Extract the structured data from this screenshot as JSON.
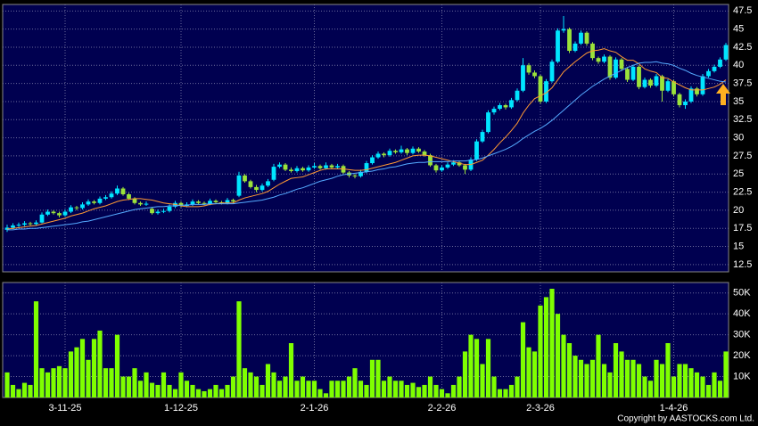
{
  "chart_data": {
    "type": "candlestick",
    "categories": [
      null,
      null,
      null,
      null,
      null,
      null,
      null,
      null,
      null,
      null,
      "3-11-25",
      null,
      null,
      null,
      null,
      null,
      null,
      null,
      null,
      null,
      null,
      null,
      null,
      null,
      null,
      null,
      null,
      null,
      null,
      null,
      "1-12-25",
      null,
      null,
      null,
      null,
      null,
      null,
      null,
      null,
      null,
      null,
      null,
      null,
      null,
      null,
      null,
      null,
      null,
      null,
      null,
      null,
      null,
      null,
      "2-1-26",
      null,
      null,
      null,
      null,
      null,
      null,
      null,
      null,
      null,
      null,
      null,
      null,
      null,
      null,
      null,
      null,
      null,
      null,
      null,
      null,
      null,
      "2-2-26",
      null,
      null,
      null,
      null,
      null,
      null,
      null,
      null,
      null,
      null,
      null,
      null,
      null,
      null,
      null,
      null,
      "2-3-26",
      null,
      null,
      null,
      null,
      null,
      null,
      null,
      null,
      null,
      null,
      null,
      null,
      null,
      null,
      null,
      null,
      null,
      null,
      null,
      null,
      null,
      null,
      "1-4-26",
      null,
      null,
      null,
      null,
      null,
      null,
      null,
      null,
      null
    ],
    "ohlc": [
      [
        17.3,
        18.0,
        17.0,
        17.6
      ],
      [
        17.6,
        18.2,
        17.4,
        17.9
      ],
      [
        17.9,
        18.3,
        17.7,
        18.0
      ],
      [
        18.0,
        18.5,
        17.8,
        18.2
      ],
      [
        18.2,
        18.4,
        17.9,
        18.1
      ],
      [
        18.1,
        18.6,
        17.9,
        18.3
      ],
      [
        18.3,
        19.7,
        18.2,
        19.4
      ],
      [
        19.4,
        20.1,
        19.2,
        19.8
      ],
      [
        19.8,
        20.0,
        19.4,
        19.6
      ],
      [
        19.6,
        19.8,
        19.0,
        19.3
      ],
      [
        19.3,
        20.1,
        19.1,
        19.8
      ],
      [
        19.8,
        20.7,
        19.6,
        20.4
      ],
      [
        20.4,
        20.6,
        20.0,
        20.3
      ],
      [
        20.3,
        21.1,
        20.1,
        20.8
      ],
      [
        20.8,
        21.5,
        20.6,
        21.2
      ],
      [
        21.2,
        21.4,
        20.8,
        21.0
      ],
      [
        21.0,
        21.9,
        20.8,
        21.6
      ],
      [
        21.6,
        22.1,
        21.4,
        21.8
      ],
      [
        21.8,
        22.6,
        21.6,
        22.3
      ],
      [
        22.3,
        23.4,
        22.1,
        23.0
      ],
      [
        23.0,
        23.2,
        22.0,
        22.2
      ],
      [
        22.2,
        22.4,
        21.4,
        21.6
      ],
      [
        21.6,
        21.8,
        20.8,
        21.0
      ],
      [
        21.0,
        21.2,
        20.6,
        20.8
      ],
      [
        20.8,
        21.2,
        20.6,
        20.9
      ],
      [
        20.2,
        20.4,
        19.4,
        19.6
      ],
      [
        19.6,
        20.1,
        19.4,
        19.8
      ],
      [
        19.8,
        20.2,
        19.6,
        19.9
      ],
      [
        19.9,
        20.8,
        19.7,
        20.5
      ],
      [
        20.5,
        21.3,
        20.3,
        21.0
      ],
      [
        21.0,
        21.2,
        20.4,
        20.6
      ],
      [
        20.6,
        21.1,
        20.4,
        20.8
      ],
      [
        20.8,
        21.5,
        20.6,
        21.2
      ],
      [
        21.2,
        21.4,
        20.8,
        21.0
      ],
      [
        21.0,
        21.2,
        20.7,
        20.9
      ],
      [
        20.9,
        21.6,
        20.7,
        21.3
      ],
      [
        21.3,
        21.5,
        20.9,
        21.1
      ],
      [
        21.1,
        21.3,
        20.8,
        21.0
      ],
      [
        21.0,
        21.7,
        20.8,
        21.4
      ],
      [
        21.4,
        21.6,
        21.0,
        21.2
      ],
      [
        22.0,
        25.3,
        21.8,
        24.8
      ],
      [
        24.8,
        25.0,
        23.8,
        24.0
      ],
      [
        24.0,
        24.2,
        23.0,
        23.2
      ],
      [
        23.2,
        23.5,
        22.5,
        22.8
      ],
      [
        22.8,
        23.7,
        22.6,
        23.4
      ],
      [
        23.4,
        24.3,
        23.2,
        24.0
      ],
      [
        24.2,
        26.4,
        24.0,
        26.0
      ],
      [
        26.0,
        26.6,
        25.8,
        26.3
      ],
      [
        26.3,
        26.5,
        25.4,
        25.6
      ],
      [
        25.6,
        25.9,
        25.2,
        25.4
      ],
      [
        25.4,
        26.1,
        25.2,
        25.8
      ],
      [
        25.8,
        26.0,
        25.3,
        25.5
      ],
      [
        25.5,
        26.2,
        25.3,
        25.9
      ],
      [
        25.9,
        26.5,
        25.7,
        26.1
      ],
      [
        26.1,
        26.3,
        25.6,
        25.8
      ],
      [
        25.8,
        26.6,
        25.6,
        26.2
      ],
      [
        26.2,
        26.4,
        25.7,
        25.9
      ],
      [
        25.9,
        26.4,
        25.7,
        26.1
      ],
      [
        26.1,
        26.3,
        25.0,
        25.2
      ],
      [
        25.2,
        25.4,
        24.5,
        24.8
      ],
      [
        24.8,
        25.0,
        24.4,
        24.7
      ],
      [
        24.7,
        25.6,
        24.5,
        25.3
      ],
      [
        25.3,
        26.8,
        25.1,
        26.5
      ],
      [
        26.5,
        27.6,
        26.3,
        27.3
      ],
      [
        27.3,
        28.1,
        27.1,
        27.8
      ],
      [
        27.8,
        28.0,
        27.3,
        27.6
      ],
      [
        27.6,
        28.5,
        27.4,
        28.2
      ],
      [
        28.2,
        28.4,
        27.8,
        28.0
      ],
      [
        28.0,
        28.9,
        27.8,
        28.4
      ],
      [
        28.4,
        28.6,
        27.6,
        27.9
      ],
      [
        27.9,
        28.8,
        27.7,
        28.5
      ],
      [
        28.5,
        28.7,
        27.9,
        28.1
      ],
      [
        28.1,
        28.3,
        27.4,
        27.6
      ],
      [
        27.6,
        27.8,
        26.0,
        26.2
      ],
      [
        26.2,
        26.4,
        25.2,
        25.5
      ],
      [
        25.5,
        26.2,
        25.3,
        25.9
      ],
      [
        25.9,
        26.6,
        25.7,
        26.3
      ],
      [
        26.3,
        26.9,
        26.1,
        26.6
      ],
      [
        26.6,
        26.8,
        26.0,
        26.2
      ],
      [
        26.2,
        26.4,
        25.0,
        25.6
      ],
      [
        25.6,
        27.3,
        25.4,
        27.0
      ],
      [
        27.0,
        29.8,
        26.8,
        29.5
      ],
      [
        29.5,
        31.1,
        29.3,
        30.8
      ],
      [
        30.8,
        33.8,
        30.6,
        33.5
      ],
      [
        33.5,
        34.3,
        33.2,
        34.0
      ],
      [
        34.0,
        34.8,
        33.8,
        34.5
      ],
      [
        34.5,
        34.7,
        33.9,
        34.2
      ],
      [
        34.2,
        35.5,
        34.0,
        35.2
      ],
      [
        35.2,
        36.8,
        35.0,
        36.5
      ],
      [
        36.5,
        41.0,
        36.3,
        40.0
      ],
      [
        40.0,
        40.3,
        38.7,
        39.0
      ],
      [
        39.0,
        39.3,
        38.2,
        38.5
      ],
      [
        38.5,
        38.7,
        34.7,
        35.0
      ],
      [
        35.0,
        38.1,
        34.8,
        37.8
      ],
      [
        37.8,
        40.8,
        37.6,
        40.5
      ],
      [
        40.5,
        45.1,
        40.3,
        44.8
      ],
      [
        44.8,
        46.8,
        44.5,
        45.0
      ],
      [
        45.0,
        45.2,
        41.7,
        42.0
      ],
      [
        42.0,
        43.3,
        41.8,
        43.0
      ],
      [
        43.0,
        44.8,
        42.8,
        44.5
      ],
      [
        44.5,
        44.7,
        42.7,
        43.0
      ],
      [
        43.0,
        43.2,
        40.7,
        41.0
      ],
      [
        41.0,
        41.2,
        40.2,
        40.5
      ],
      [
        40.5,
        41.5,
        40.3,
        41.2
      ],
      [
        41.2,
        41.4,
        38.0,
        38.3
      ],
      [
        38.3,
        41.1,
        38.1,
        40.8
      ],
      [
        40.8,
        41.0,
        39.2,
        39.5
      ],
      [
        39.5,
        39.7,
        37.7,
        38.0
      ],
      [
        38.0,
        40.1,
        37.8,
        39.8
      ],
      [
        39.8,
        40.0,
        36.7,
        37.0
      ],
      [
        37.0,
        38.3,
        36.8,
        38.0
      ],
      [
        38.0,
        38.2,
        36.9,
        37.2
      ],
      [
        37.2,
        38.8,
        37.0,
        38.5
      ],
      [
        38.5,
        38.7,
        35.0,
        36.5
      ],
      [
        36.5,
        38.1,
        36.3,
        37.8
      ],
      [
        37.8,
        38.0,
        35.7,
        36.0
      ],
      [
        36.0,
        36.2,
        34.2,
        34.5
      ],
      [
        34.5,
        35.3,
        34.0,
        35.0
      ],
      [
        35.0,
        37.1,
        34.8,
        36.8
      ],
      [
        36.8,
        37.0,
        35.7,
        36.0
      ],
      [
        36.0,
        38.8,
        35.8,
        38.5
      ],
      [
        38.5,
        39.5,
        38.3,
        39.2
      ],
      [
        39.2,
        40.1,
        39.0,
        39.8
      ],
      [
        39.8,
        41.1,
        39.6,
        40.8
      ],
      [
        40.8,
        43.1,
        40.6,
        42.8
      ]
    ],
    "up_color": "#00e5ff",
    "down_color": "#9be33a",
    "series": [
      {
        "color": "#ff9933",
        "values": [
          17.4,
          17.5,
          17.6,
          17.7,
          17.8,
          17.9,
          18.1,
          18.3,
          18.5,
          18.7,
          18.9,
          19.2,
          19.4,
          19.6,
          19.9,
          20.2,
          20.4,
          20.6,
          20.9,
          21.2,
          21.4,
          21.5,
          21.6,
          21.6,
          21.5,
          21.4,
          21.2,
          21.0,
          20.9,
          20.8,
          20.6,
          20.5,
          20.5,
          20.5,
          20.6,
          20.8,
          20.9,
          21.0,
          21.0,
          21.0,
          21.4,
          21.7,
          21.9,
          22.1,
          22.3,
          22.6,
          23.1,
          23.6,
          24.0,
          24.4,
          24.5,
          24.6,
          24.9,
          25.2,
          25.5,
          25.7,
          25.7,
          25.7,
          25.7,
          25.6,
          25.5,
          25.5,
          25.6,
          25.8,
          26.0,
          26.2,
          26.4,
          26.6,
          26.9,
          27.2,
          27.5,
          27.6,
          27.6,
          27.5,
          27.3,
          27.1,
          26.9,
          26.7,
          26.5,
          26.3,
          26.3,
          26.6,
          26.9,
          27.6,
          28.4,
          29.3,
          30.1,
          31.0,
          32.0,
          33.4,
          34.5,
          35.4,
          35.8,
          36.2,
          36.9,
          38.0,
          39.1,
          39.8,
          40.5,
          41.1,
          41.7,
          42.0,
          42.1,
          42.3,
          42.0,
          41.8,
          41.2,
          40.7,
          40.7,
          40.2,
          39.5,
          39.2,
          39.0,
          38.3,
          38.2,
          37.7,
          37.3,
          36.9,
          36.6,
          36.6,
          36.6,
          36.8,
          37.0,
          37.4,
          38.0
        ]
      },
      {
        "color": "#55aaff",
        "values": [
          17.3,
          17.3,
          17.4,
          17.4,
          17.5,
          17.5,
          17.6,
          17.7,
          17.8,
          17.9,
          18.0,
          18.1,
          18.2,
          18.4,
          18.5,
          18.7,
          18.9,
          19.1,
          19.3,
          19.5,
          19.7,
          19.9,
          20.1,
          20.2,
          20.3,
          20.4,
          20.5,
          20.5,
          20.6,
          20.6,
          20.7,
          20.7,
          20.8,
          20.8,
          20.8,
          20.9,
          20.9,
          20.9,
          20.9,
          20.9,
          21.0,
          21.1,
          21.2,
          21.3,
          21.4,
          21.6,
          21.8,
          22.1,
          22.3,
          22.6,
          22.9,
          23.1,
          23.4,
          23.7,
          24.0,
          24.2,
          24.4,
          24.7,
          24.9,
          25.0,
          25.1,
          25.2,
          25.3,
          25.4,
          25.6,
          25.7,
          25.9,
          26.0,
          26.2,
          26.4,
          26.5,
          26.6,
          26.6,
          26.7,
          26.7,
          26.7,
          26.7,
          26.8,
          26.8,
          26.8,
          26.9,
          27.0,
          27.2,
          27.5,
          27.8,
          28.1,
          28.4,
          28.8,
          29.3,
          29.9,
          30.4,
          30.9,
          31.3,
          31.8,
          32.4,
          33.1,
          33.8,
          34.5,
          35.2,
          35.9,
          36.5,
          37.1,
          37.6,
          38.1,
          38.5,
          38.9,
          39.3,
          39.7,
          40.0,
          40.3,
          40.4,
          40.4,
          40.5,
          40.3,
          40.2,
          40.0,
          39.6,
          39.3,
          38.9,
          38.6,
          38.4,
          38.2,
          38.0,
          37.8,
          37.7
        ]
      }
    ],
    "ylim": [
      11.5,
      48.4
    ],
    "yticks": [
      12.5,
      15,
      17.5,
      20,
      22.5,
      25,
      27.5,
      30,
      32.5,
      35,
      37.5,
      40,
      42.5,
      45,
      47.5
    ],
    "volume": {
      "color": "#7fff00",
      "values": [
        12000,
        6000,
        4000,
        7000,
        6000,
        46000,
        14000,
        12000,
        14000,
        15000,
        14000,
        22000,
        24000,
        28000,
        18000,
        28000,
        32000,
        14000,
        14000,
        30000,
        10000,
        10000,
        14000,
        8000,
        12000,
        7000,
        6000,
        12000,
        6000,
        4000,
        12000,
        8000,
        6000,
        4000,
        3000,
        4000,
        6000,
        4000,
        6000,
        10000,
        46000,
        14000,
        12000,
        10000,
        6000,
        16000,
        12000,
        8000,
        10000,
        26000,
        8000,
        10000,
        8000,
        8000,
        4000,
        2000,
        8000,
        8000,
        8000,
        10000,
        14000,
        8000,
        6000,
        18000,
        18000,
        8000,
        10000,
        8000,
        8000,
        6000,
        7000,
        5000,
        6000,
        10000,
        6000,
        4000,
        2000,
        6000,
        10000,
        22000,
        30000,
        28000,
        16000,
        28000,
        10000,
        4000,
        4000,
        6000,
        10000,
        36000,
        24000,
        22000,
        44000,
        48000,
        52000,
        40000,
        30000,
        26000,
        20000,
        18000,
        16000,
        18000,
        30000,
        16000,
        12000,
        26000,
        22000,
        18000,
        18000,
        16000,
        10000,
        8000,
        18000,
        16000,
        26000,
        10000,
        16000,
        16000,
        14000,
        12000,
        10000,
        6000,
        12000,
        8000,
        22000
      ],
      "ylim": [
        0,
        55000
      ],
      "yticks": [
        {
          "value": 10000,
          "label": "10K"
        },
        {
          "value": 20000,
          "label": "20K"
        },
        {
          "value": 30000,
          "label": "30K"
        },
        {
          "value": 40000,
          "label": "40K"
        },
        {
          "value": 50000,
          "label": "50K"
        }
      ]
    },
    "copyright": "Copyright by AASTOCKS.com Ltd."
  }
}
